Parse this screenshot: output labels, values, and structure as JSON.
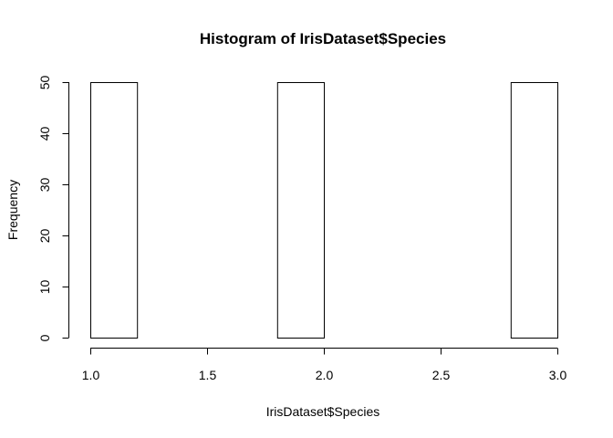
{
  "chart_data": {
    "type": "bar",
    "title": "Histogram of IrisDataset$Species",
    "xlabel": "IrisDataset$Species",
    "ylabel": "Frequency",
    "xlim": [
      1.0,
      3.0
    ],
    "ylim": [
      0,
      50
    ],
    "x_ticks": [
      "1.0",
      "1.5",
      "2.0",
      "2.5",
      "3.0"
    ],
    "y_ticks": [
      "0",
      "10",
      "20",
      "30",
      "40",
      "50"
    ],
    "bins": [
      {
        "start": 1.0,
        "end": 1.2,
        "value": 50
      },
      {
        "start": 1.2,
        "end": 1.4,
        "value": 0
      },
      {
        "start": 1.4,
        "end": 1.6,
        "value": 0
      },
      {
        "start": 1.6,
        "end": 1.8,
        "value": 0
      },
      {
        "start": 1.8,
        "end": 2.0,
        "value": 50
      },
      {
        "start": 2.0,
        "end": 2.2,
        "value": 0
      },
      {
        "start": 2.2,
        "end": 2.4,
        "value": 0
      },
      {
        "start": 2.4,
        "end": 2.6,
        "value": 0
      },
      {
        "start": 2.6,
        "end": 2.8,
        "value": 0
      },
      {
        "start": 2.8,
        "end": 3.0,
        "value": 50
      }
    ],
    "grid": false,
    "colors": {
      "fill": "#ffffff",
      "stroke": "#000000"
    }
  }
}
